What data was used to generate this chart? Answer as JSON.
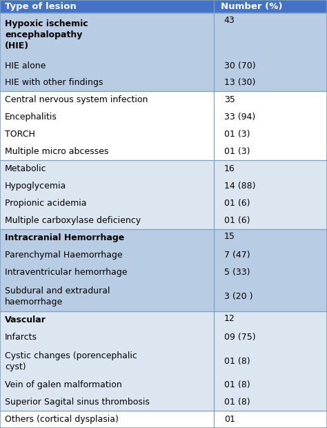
{
  "header": [
    "Type of lesion",
    "Number (%)"
  ],
  "header_bg": "#4472c4",
  "header_text_color": "#ffffff",
  "row_groups": [
    {
      "bg": "#b8cce4",
      "rows": [
        {
          "left": "Hypoxic ischemic\nencephalopathy\n(HIE)",
          "right": "43",
          "left_bold": true,
          "right_valign": "top",
          "row_lines": 3
        },
        {
          "left": "HIE alone",
          "right": "30 (70)",
          "left_bold": false,
          "right_valign": "center",
          "row_lines": 1
        },
        {
          "left": "HIE with other findings",
          "right": "13 (30)",
          "left_bold": false,
          "right_valign": "center",
          "row_lines": 1
        }
      ]
    },
    {
      "bg": "#ffffff",
      "rows": [
        {
          "left": "Central nervous system infection",
          "right": "35",
          "left_bold": false,
          "right_valign": "center",
          "row_lines": 1
        },
        {
          "left": "Encephalitis",
          "right": "33 (94)",
          "left_bold": false,
          "right_valign": "center",
          "row_lines": 1
        },
        {
          "left": "TORCH",
          "right": "01 (3)",
          "left_bold": false,
          "right_valign": "center",
          "row_lines": 1
        },
        {
          "left": "Multiple micro abcesses",
          "right": "01 (3)",
          "left_bold": false,
          "right_valign": "center",
          "row_lines": 1
        }
      ]
    },
    {
      "bg": "#dce6f1",
      "rows": [
        {
          "left": "Metabolic",
          "right": "16",
          "left_bold": false,
          "right_valign": "center",
          "row_lines": 1
        },
        {
          "left": "Hypoglycemia",
          "right": "14 (88)",
          "left_bold": false,
          "right_valign": "center",
          "row_lines": 1
        },
        {
          "left": "Propionic acidemia",
          "right": "01 (6)",
          "left_bold": false,
          "right_valign": "center",
          "row_lines": 1
        },
        {
          "left": "Multiple carboxylase deficiency",
          "right": "01 (6)",
          "left_bold": false,
          "right_valign": "center",
          "row_lines": 1
        }
      ]
    },
    {
      "bg": "#b8cce4",
      "rows": [
        {
          "left": "Intracranial Hemorrhage",
          "right": "15",
          "left_bold": true,
          "right_valign": "top",
          "row_lines": 1
        },
        {
          "left": "Parenchymal Haemorrhage",
          "right": "7 (47)",
          "left_bold": false,
          "right_valign": "center",
          "row_lines": 1
        },
        {
          "left": "Intraventricular hemorrhage",
          "right": "5 (33)",
          "left_bold": false,
          "right_valign": "center",
          "row_lines": 1
        },
        {
          "left": "Subdural and extradural\nhaemorrhage",
          "right": "3 (20 )",
          "left_bold": false,
          "right_valign": "center",
          "row_lines": 2
        }
      ]
    },
    {
      "bg": "#dce6f1",
      "rows": [
        {
          "left": "Vascular",
          "right": "12",
          "left_bold": true,
          "right_valign": "top",
          "row_lines": 1
        },
        {
          "left": "Infarcts",
          "right": "09 (75)",
          "left_bold": false,
          "right_valign": "center",
          "row_lines": 1
        },
        {
          "left": "Cystic changes (porencephalic\ncyst)",
          "right": "01 (8)",
          "left_bold": false,
          "right_valign": "center",
          "row_lines": 2
        },
        {
          "left": "Vein of galen malformation",
          "right": "01 (8)",
          "left_bold": false,
          "right_valign": "center",
          "row_lines": 1
        },
        {
          "left": "Superior Sagital sinus thrombosis",
          "right": "01 (8)",
          "left_bold": false,
          "right_valign": "center",
          "row_lines": 1
        }
      ]
    },
    {
      "bg": "#ffffff",
      "rows": [
        {
          "left": "Others (cortical dysplasia)",
          "right": "01",
          "left_bold": false,
          "right_valign": "center",
          "row_lines": 1
        }
      ]
    }
  ],
  "col_split": 0.655,
  "font_size": 9.0,
  "line_color": "#7f9fc0",
  "fig_width": 4.74,
  "fig_height": 6.2,
  "dpi": 100
}
